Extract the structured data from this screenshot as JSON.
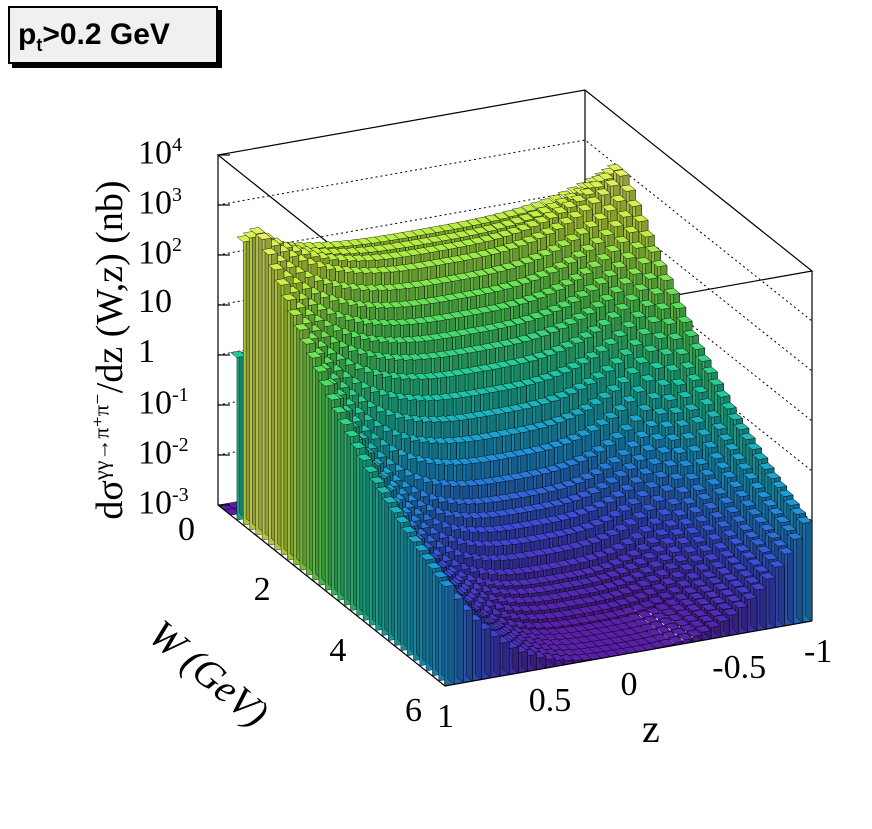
{
  "chart_data": {
    "type": "surface3d-lego",
    "title_box": {
      "main": "p",
      "sub": "t",
      "rest": ">0.2 GeV"
    },
    "zlabel": {
      "prefix": "dσ",
      "process": "γγ→π⁺π⁻",
      "suffix": "/dz  (W,z) (nb)"
    },
    "xlabel": "W (GeV)",
    "ylabel": "z",
    "z_ticks": [
      {
        "base": "10",
        "exp": "4"
      },
      {
        "base": "10",
        "exp": "3"
      },
      {
        "base": "10",
        "exp": "2"
      },
      {
        "base": "10",
        "exp": ""
      },
      {
        "base": "1",
        "exp": ""
      },
      {
        "base": "10",
        "exp": "-1"
      },
      {
        "base": "10",
        "exp": "-2"
      },
      {
        "base": "10",
        "exp": "-3"
      }
    ],
    "w_ticks": [
      "0",
      "2",
      "4",
      "6"
    ],
    "z_axis_ticks": [
      "1",
      "0.5",
      "0",
      "-0.5",
      "-1"
    ],
    "w_range": [
      0,
      6
    ],
    "z_range": [
      -1,
      1
    ],
    "value_range_log10": [
      -3,
      4
    ],
    "log_scale": true,
    "colormap": [
      "#5a1fa8",
      "#3b4dd8",
      "#1c9ad8",
      "#1fc9a0",
      "#58e05a",
      "#c8f040",
      "#f4f470"
    ],
    "surface_samples": {
      "w": [
        0.3,
        0.5,
        1.0,
        2.0,
        3.0,
        4.0,
        5.0,
        6.0
      ],
      "z_center_log10": [
        -3,
        2.2,
        2.0,
        0.5,
        -1.5,
        -2.6,
        -3,
        -3
      ],
      "z_edge_log10": [
        -3,
        2.6,
        3.2,
        2.0,
        1.0,
        0.2,
        -0.4,
        -0.9
      ]
    }
  }
}
